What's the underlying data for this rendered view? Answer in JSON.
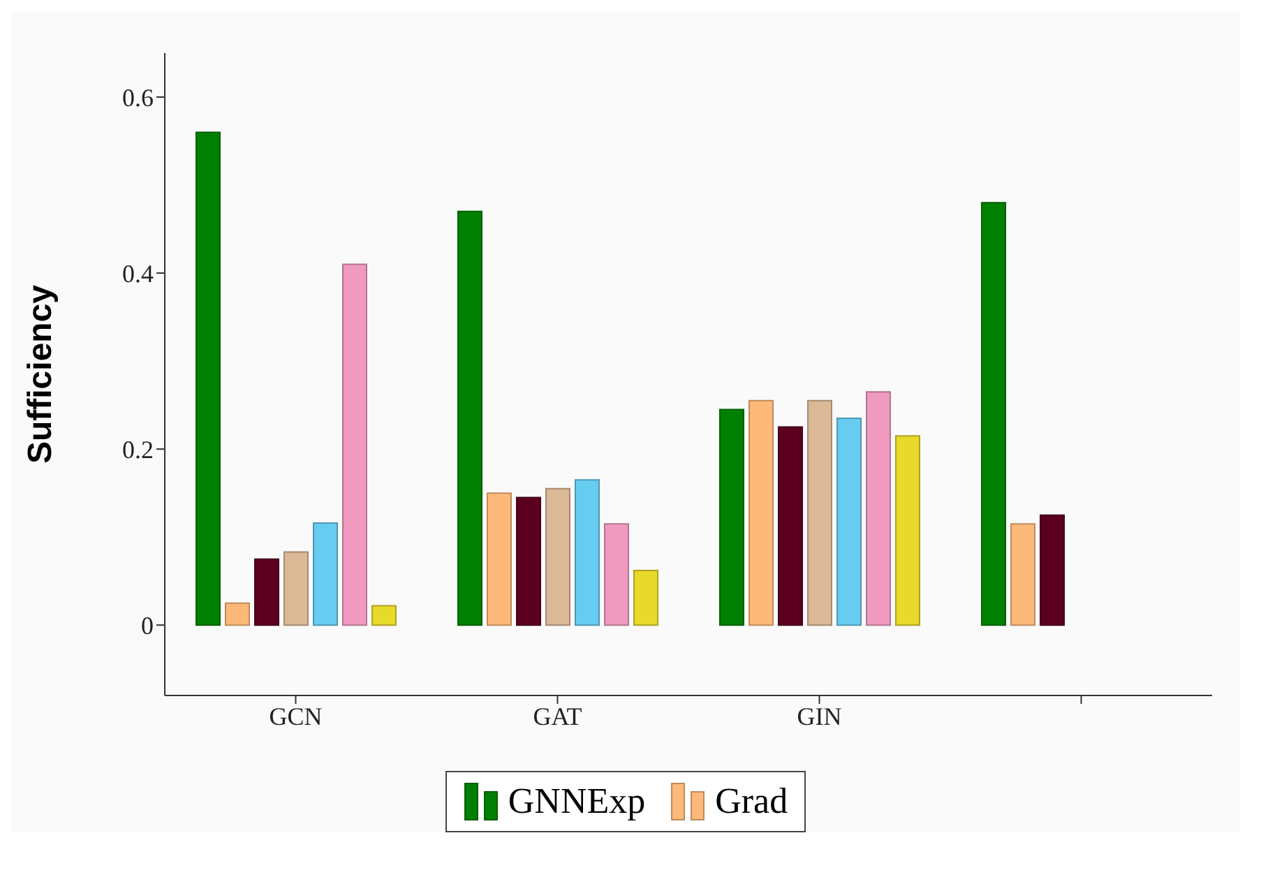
{
  "chart_data": {
    "type": "bar",
    "ylabel": "Sufficiency",
    "categories": [
      "GCN",
      "GAT",
      "GIN",
      null
    ],
    "series": [
      {
        "name": "GNNExp",
        "color": "#008000",
        "values": [
          0.56,
          0.47,
          0.245,
          0.48
        ]
      },
      {
        "name": "Grad",
        "color": "#fdb97a",
        "values": [
          0.025,
          0.15,
          0.255,
          0.115
        ]
      },
      {
        "color": "#5c0020",
        "values": [
          0.075,
          0.145,
          0.225,
          0.125
        ]
      },
      {
        "color": "#dbb896",
        "values": [
          0.083,
          0.155,
          0.255,
          null
        ]
      },
      {
        "color": "#66ccf0",
        "values": [
          0.116,
          0.165,
          0.235,
          null
        ]
      },
      {
        "color": "#f09ac0",
        "values": [
          0.41,
          0.115,
          0.265,
          null
        ]
      },
      {
        "color": "#e8d92a",
        "values": [
          0.022,
          0.062,
          0.215,
          null
        ]
      }
    ],
    "ylim": [
      -0.08,
      0.65
    ],
    "yticks": [
      0,
      0.2,
      0.4,
      0.6
    ],
    "grid": false,
    "legend": "bottom"
  }
}
